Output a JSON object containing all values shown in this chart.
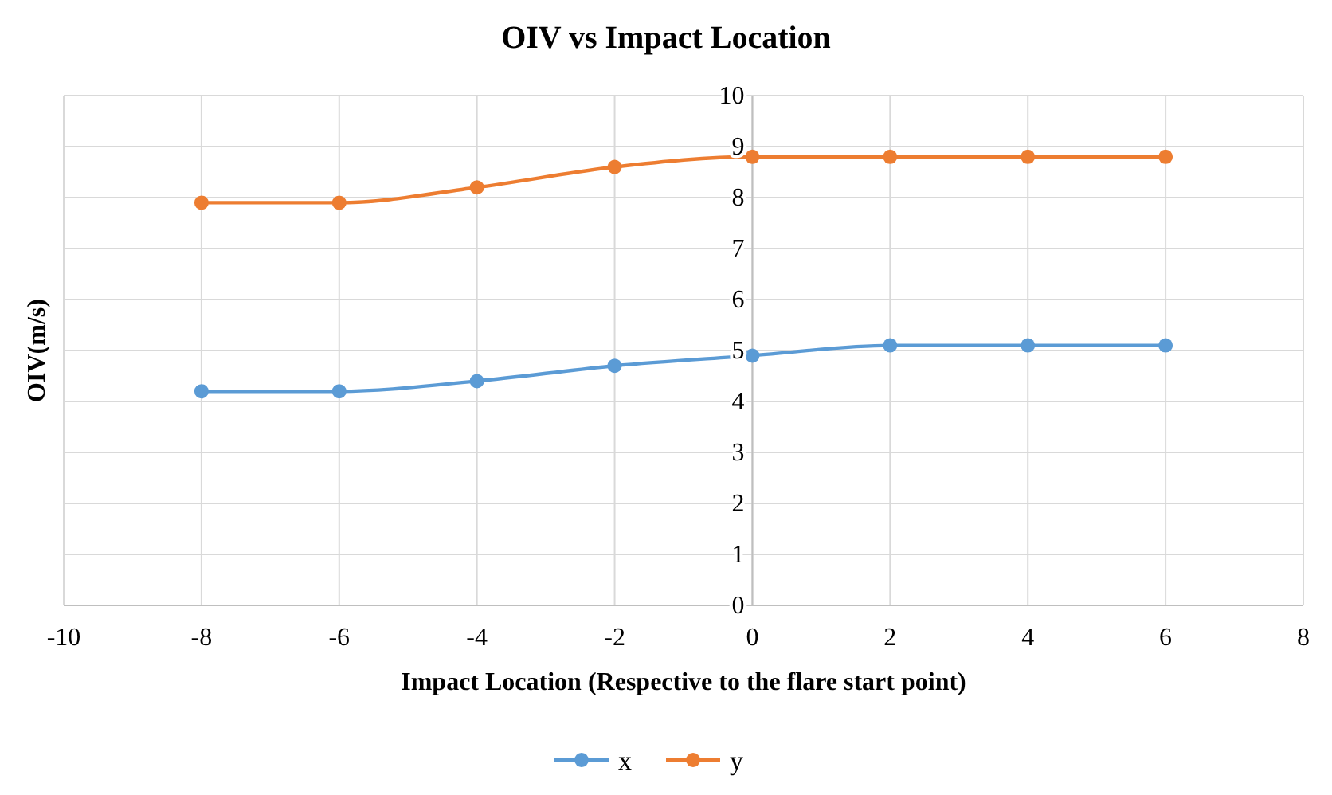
{
  "chart_data": {
    "type": "line",
    "title": "OIV vs Impact Location",
    "xlabel": "Impact Location (Respective to the flare start point)",
    "ylabel": "OIV(m/s)",
    "x": [
      -8,
      -6,
      -4,
      -2,
      0,
      2,
      4,
      6
    ],
    "series": [
      {
        "name": "x",
        "color": "#5b9bd5",
        "values": [
          4.2,
          4.2,
          4.4,
          4.7,
          4.9,
          5.1,
          5.1,
          5.1
        ]
      },
      {
        "name": "y",
        "color": "#ed7d31",
        "values": [
          7.9,
          7.9,
          8.2,
          8.6,
          8.8,
          8.8,
          8.8,
          8.8
        ]
      }
    ],
    "xlim": [
      -10,
      8
    ],
    "xticks": [
      -10,
      -8,
      -6,
      -4,
      -2,
      0,
      2,
      4,
      6,
      8
    ],
    "ylim": [
      0,
      10
    ],
    "yticks": [
      0,
      1,
      2,
      3,
      4,
      5,
      6,
      7,
      8,
      9,
      10
    ],
    "grid": true,
    "legend": "bottom",
    "marker": "circle",
    "line_style": "solid"
  }
}
